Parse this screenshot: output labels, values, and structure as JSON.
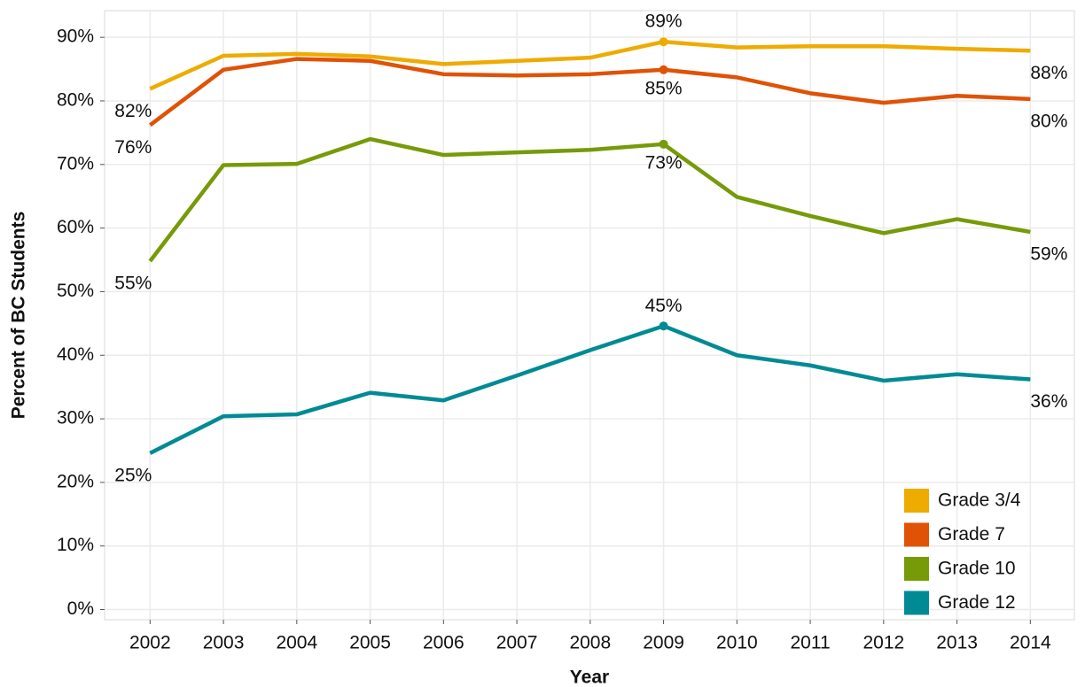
{
  "chart_data": {
    "type": "line",
    "x_label": "Year",
    "y_label": "Percent of BC Students",
    "x": [
      2002,
      2003,
      2004,
      2005,
      2006,
      2007,
      2008,
      2009,
      2010,
      2011,
      2012,
      2013,
      2014
    ],
    "series": [
      {
        "name": "Grade 3/4",
        "color": "#eeab00",
        "values": [
          81.9,
          87.1,
          87.4,
          87.0,
          85.8,
          86.3,
          86.8,
          89.3,
          88.4,
          88.6,
          88.6,
          88.2,
          87.9
        ],
        "value_labels": [
          "82%",
          null,
          null,
          null,
          null,
          null,
          null,
          "89%",
          null,
          null,
          null,
          null,
          "88%"
        ]
      },
      {
        "name": "Grade 7",
        "color": "#e05206",
        "values": [
          76.2,
          84.9,
          86.6,
          86.3,
          84.2,
          84.0,
          84.2,
          84.9,
          83.7,
          81.2,
          79.7,
          80.8,
          80.3
        ],
        "value_labels": [
          "76%",
          null,
          null,
          null,
          null,
          null,
          null,
          "85%",
          null,
          null,
          null,
          null,
          "80%"
        ]
      },
      {
        "name": "Grade 10",
        "color": "#779a08",
        "values": [
          54.8,
          69.9,
          70.1,
          74.0,
          71.5,
          71.9,
          72.3,
          73.2,
          64.9,
          61.9,
          59.2,
          61.4,
          59.4
        ],
        "value_labels": [
          "55%",
          null,
          null,
          null,
          null,
          null,
          null,
          "73%",
          null,
          null,
          null,
          null,
          "59%"
        ]
      },
      {
        "name": "Grade 12",
        "color": "#008b94",
        "values": [
          24.6,
          30.4,
          30.7,
          34.1,
          32.9,
          36.8,
          40.8,
          44.6,
          40.0,
          38.4,
          36.0,
          37.0,
          36.2
        ],
        "value_labels": [
          "25%",
          null,
          null,
          null,
          null,
          null,
          null,
          "45%",
          null,
          null,
          null,
          null,
          "36%"
        ]
      }
    ],
    "xlim": [
      2001.38,
      2014.6
    ],
    "xticks": [
      2002,
      2003,
      2004,
      2005,
      2006,
      2007,
      2008,
      2009,
      2010,
      2011,
      2012,
      2013,
      2014
    ],
    "ylim": [
      -1.6,
      94.2
    ],
    "yticks": [
      {
        "value": 0,
        "label": "0%"
      },
      {
        "value": 10,
        "label": "10%"
      },
      {
        "value": 20,
        "label": "20%"
      },
      {
        "value": 30,
        "label": "30%"
      },
      {
        "value": 40,
        "label": "40%"
      },
      {
        "value": 50,
        "label": "50%"
      },
      {
        "value": 60,
        "label": "60%"
      },
      {
        "value": 70,
        "label": "70%"
      },
      {
        "value": 80,
        "label": "80%"
      },
      {
        "value": 90,
        "label": "90%"
      }
    ],
    "grid": true,
    "legend": "bottom-right"
  }
}
